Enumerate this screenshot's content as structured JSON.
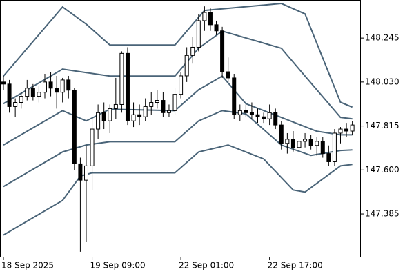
{
  "chart_data": {
    "type": "candlestick",
    "categories": [
      "18 Sep 2025",
      null,
      null,
      null,
      null,
      null,
      null,
      null,
      null,
      null,
      null,
      null,
      null,
      null,
      null,
      "19 Sep 09:00",
      null,
      null,
      null,
      null,
      null,
      null,
      null,
      null,
      null,
      null,
      null,
      null,
      null,
      null,
      "22 Sep 01:00",
      null,
      null,
      null,
      null,
      null,
      null,
      null,
      null,
      null,
      null,
      null,
      null,
      null,
      null,
      "22 Sep 17:00",
      null,
      null,
      null,
      null,
      null,
      null,
      null,
      null,
      null,
      null,
      null,
      null,
      null,
      null
    ],
    "open": [
      148.03,
      148.02,
      147.91,
      147.93,
      147.96,
      148.0,
      147.96,
      147.98,
      148.03,
      148.0,
      147.98,
      148.04,
      147.99,
      147.63,
      147.55,
      147.62,
      147.8,
      147.88,
      147.84,
      147.9,
      147.92,
      148.17,
      147.84,
      147.87,
      147.86,
      147.91,
      147.93,
      147.94,
      147.88,
      147.89,
      147.97,
      148.06,
      148.16,
      148.2,
      148.33,
      148.37,
      148.31,
      148.28,
      148.08,
      148.05,
      147.87,
      147.89,
      147.88,
      147.87,
      147.86,
      147.85,
      147.88,
      147.82,
      147.73,
      147.75,
      147.71,
      147.74,
      147.75,
      147.72,
      147.74,
      147.68,
      147.64,
      147.78,
      147.8,
      147.79
    ],
    "high": [
      148.06,
      148.04,
      147.95,
      147.98,
      148.04,
      148.02,
      148.01,
      148.07,
      148.08,
      148.06,
      148.05,
      148.06,
      148.0,
      147.66,
      147.72,
      147.86,
      147.92,
      147.93,
      147.92,
      148.05,
      148.18,
      148.2,
      147.93,
      147.92,
      147.95,
      147.98,
      147.99,
      147.98,
      147.92,
      148.0,
      148.08,
      148.2,
      148.25,
      148.36,
      148.4,
      148.39,
      148.33,
      148.3,
      148.15,
      148.07,
      147.92,
      147.92,
      147.93,
      147.9,
      147.88,
      147.92,
      147.9,
      147.84,
      147.78,
      147.79,
      147.76,
      147.78,
      147.77,
      147.76,
      147.76,
      147.72,
      147.8,
      147.81,
      147.83,
      147.84
    ],
    "low": [
      147.99,
      147.88,
      147.86,
      147.9,
      147.94,
      147.94,
      147.93,
      147.95,
      147.96,
      147.9,
      147.93,
      147.95,
      147.6,
      147.2,
      147.25,
      147.5,
      147.75,
      147.8,
      147.78,
      147.85,
      147.88,
      147.82,
      147.81,
      147.82,
      147.84,
      147.87,
      147.9,
      147.86,
      147.86,
      147.87,
      147.95,
      148.03,
      148.12,
      148.18,
      148.28,
      148.28,
      148.26,
      148.05,
      148.03,
      147.85,
      147.84,
      147.86,
      147.85,
      147.83,
      147.83,
      147.82,
      147.8,
      147.7,
      147.68,
      147.69,
      147.68,
      147.71,
      147.7,
      147.67,
      147.66,
      147.62,
      147.62,
      147.73,
      147.76,
      147.77
    ],
    "close": [
      148.02,
      147.91,
      147.93,
      147.96,
      148.0,
      147.96,
      147.98,
      148.03,
      148.0,
      147.98,
      148.04,
      147.99,
      147.63,
      147.55,
      147.62,
      147.8,
      147.88,
      147.84,
      147.9,
      147.92,
      148.17,
      147.84,
      147.87,
      147.86,
      147.91,
      147.93,
      147.94,
      147.88,
      147.89,
      147.97,
      148.06,
      148.16,
      148.2,
      148.33,
      148.37,
      148.31,
      148.28,
      148.08,
      148.05,
      147.87,
      147.89,
      147.88,
      147.87,
      147.86,
      147.85,
      147.88,
      147.82,
      147.73,
      147.75,
      147.71,
      147.74,
      147.75,
      147.72,
      147.74,
      147.68,
      147.64,
      147.78,
      147.8,
      147.79,
      147.82
    ],
    "bull_color": "#ffffff",
    "bear_color": "#000000",
    "bands": [
      {
        "color": "#4a6478",
        "x": [
          0,
          10,
          14,
          18,
          29,
          34,
          47,
          51,
          57,
          59
        ],
        "values": [
          148.059,
          148.397,
          148.313,
          148.211,
          148.211,
          148.38,
          148.414,
          148.363,
          147.931,
          147.907
        ]
      },
      {
        "color": "#4a6478",
        "x": [
          0,
          10,
          14,
          18,
          29,
          33,
          37,
          47,
          51,
          57,
          59
        ],
        "values": [
          147.924,
          148.093,
          148.076,
          148.059,
          148.059,
          148.195,
          148.279,
          148.195,
          148.059,
          147.857,
          147.85
        ]
      },
      {
        "color": "#4a6478",
        "x": [
          0,
          10,
          14,
          18,
          29,
          33,
          37,
          41,
          47,
          53,
          57,
          59
        ],
        "values": [
          147.722,
          147.89,
          147.84,
          147.897,
          147.89,
          147.992,
          148.059,
          147.924,
          147.857,
          147.789,
          147.772,
          147.772
        ]
      },
      {
        "color": "#4a6478",
        "x": [
          0,
          10,
          14,
          18,
          29,
          33,
          37,
          41,
          47,
          52,
          57,
          59
        ],
        "values": [
          147.519,
          147.688,
          147.722,
          147.738,
          147.738,
          147.84,
          147.89,
          147.874,
          147.722,
          147.671,
          147.695,
          147.698
        ]
      },
      {
        "color": "#4a6478",
        "x": [
          0,
          10,
          13,
          15,
          29,
          33,
          38,
          44,
          49,
          51,
          57,
          59
        ],
        "values": [
          147.282,
          147.451,
          147.57,
          147.586,
          147.586,
          147.688,
          147.722,
          147.654,
          147.502,
          147.492,
          147.62,
          147.627
        ]
      }
    ],
    "ylim": [
      147.176,
      148.431
    ],
    "yticks": [
      148.245,
      {
        "value": 148.03,
        "label": "148.030"
      },
      147.815,
      {
        "value": 147.6,
        "label": "147.600"
      },
      147.385
    ]
  }
}
